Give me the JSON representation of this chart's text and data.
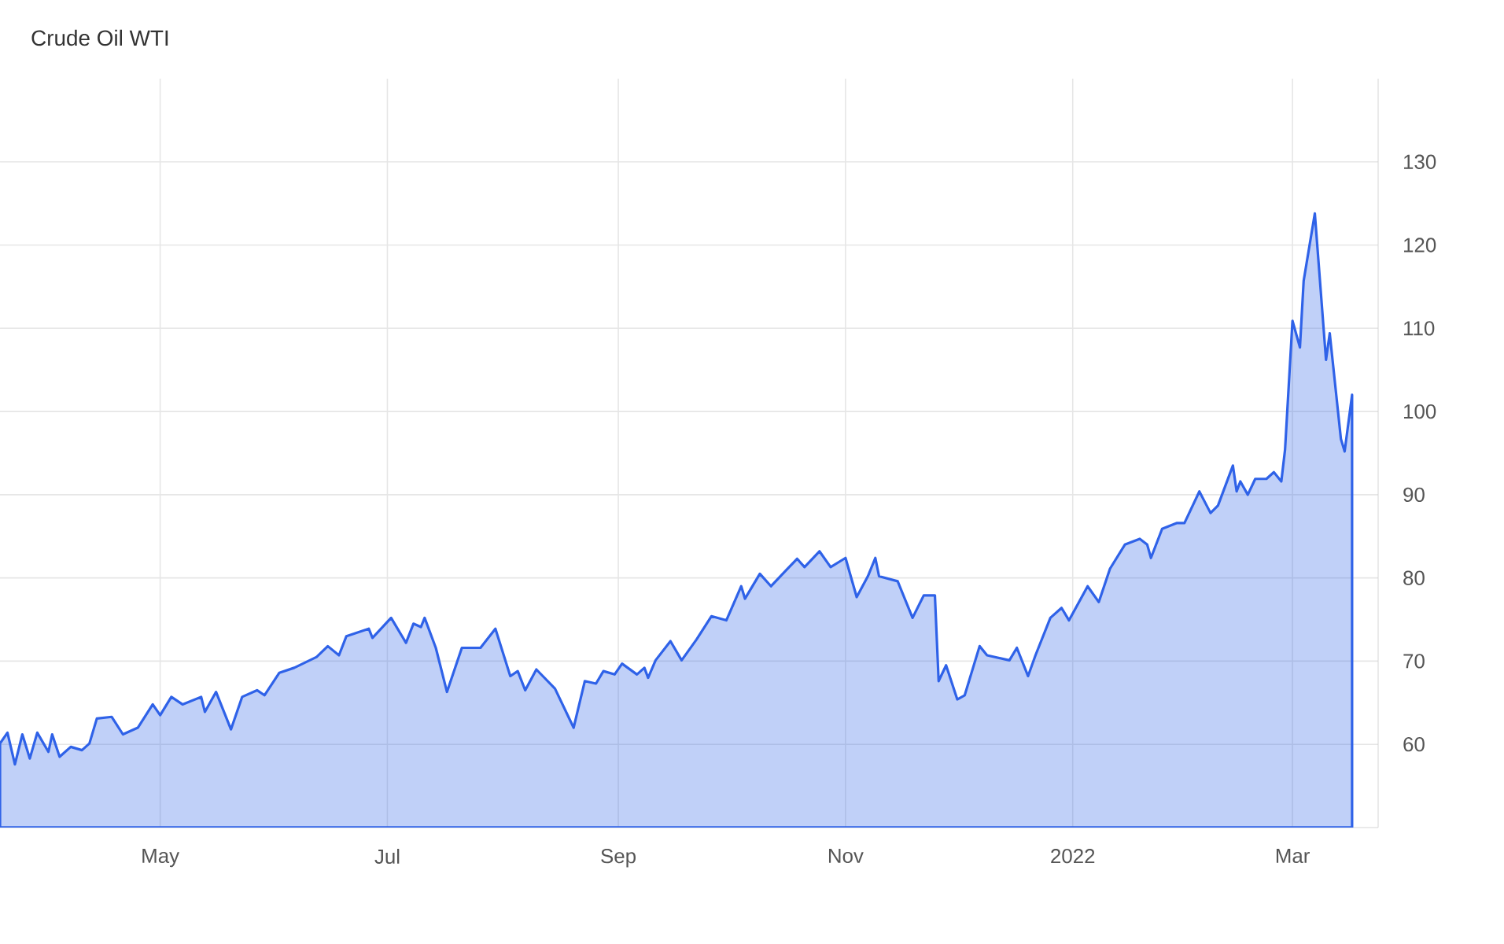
{
  "chart_data": {
    "type": "area",
    "title": "Crude Oil WTI",
    "color": "#2f62e8",
    "grid": true,
    "xlim": [
      "2021-03-19",
      "2022-03-24"
    ],
    "ylim": [
      50,
      140
    ],
    "xticks": [
      {
        "value": "2021-05-01",
        "label": "May"
      },
      {
        "value": "2021-07-01",
        "label": "Jul"
      },
      {
        "value": "2021-09-01",
        "label": "Sep"
      },
      {
        "value": "2021-11-01",
        "label": "Nov"
      },
      {
        "value": "2022-01-01",
        "label": "2022"
      },
      {
        "value": "2022-03-01",
        "label": "Mar"
      }
    ],
    "yticks": [
      60,
      70,
      80,
      90,
      100,
      110,
      120,
      130
    ],
    "x": [
      "2021-03-19",
      "2021-03-21",
      "2021-03-23",
      "2021-03-25",
      "2021-03-27",
      "2021-03-29",
      "2021-04-01",
      "2021-04-02",
      "2021-04-04",
      "2021-04-07",
      "2021-04-10",
      "2021-04-12",
      "2021-04-14",
      "2021-04-18",
      "2021-04-21",
      "2021-04-25",
      "2021-04-29",
      "2021-05-01",
      "2021-05-04",
      "2021-05-07",
      "2021-05-12",
      "2021-05-13",
      "2021-05-16",
      "2021-05-20",
      "2021-05-23",
      "2021-05-27",
      "2021-05-29",
      "2021-06-02",
      "2021-06-06",
      "2021-06-12",
      "2021-06-15",
      "2021-06-18",
      "2021-06-20",
      "2021-06-26",
      "2021-06-27",
      "2021-07-02",
      "2021-07-06",
      "2021-07-08",
      "2021-07-10",
      "2021-07-11",
      "2021-07-14",
      "2021-07-17",
      "2021-07-21",
      "2021-07-26",
      "2021-07-30",
      "2021-08-03",
      "2021-08-05",
      "2021-08-07",
      "2021-08-10",
      "2021-08-15",
      "2021-08-20",
      "2021-08-23",
      "2021-08-26",
      "2021-08-28",
      "2021-08-31",
      "2021-09-02",
      "2021-09-06",
      "2021-09-08",
      "2021-09-09",
      "2021-09-11",
      "2021-09-15",
      "2021-09-18",
      "2021-09-22",
      "2021-09-26",
      "2021-09-30",
      "2021-10-04",
      "2021-10-05",
      "2021-10-09",
      "2021-10-12",
      "2021-10-16",
      "2021-10-19",
      "2021-10-21",
      "2021-10-25",
      "2021-10-28",
      "2021-11-01",
      "2021-11-04",
      "2021-11-07",
      "2021-11-09",
      "2021-11-10",
      "2021-11-15",
      "2021-11-19",
      "2021-11-22",
      "2021-11-25",
      "2021-11-26",
      "2021-11-28",
      "2021-12-01",
      "2021-12-03",
      "2021-12-07",
      "2021-12-09",
      "2021-12-15",
      "2021-12-17",
      "2021-12-20",
      "2021-12-22",
      "2021-12-26",
      "2021-12-29",
      "2021-12-31",
      "2022-01-05",
      "2022-01-08",
      "2022-01-11",
      "2022-01-15",
      "2022-01-19",
      "2022-01-21",
      "2022-01-22",
      "2022-01-25",
      "2022-01-29",
      "2022-01-31",
      "2022-02-04",
      "2022-02-07",
      "2022-02-09",
      "2022-02-13",
      "2022-02-14",
      "2022-02-15",
      "2022-02-17",
      "2022-02-19",
      "2022-02-22",
      "2022-02-24",
      "2022-02-26",
      "2022-02-27",
      "2022-03-01",
      "2022-03-03",
      "2022-03-04",
      "2022-03-07",
      "2022-03-10",
      "2022-03-11",
      "2022-03-14",
      "2022-03-15",
      "2022-03-17"
    ],
    "values": [
      60.1,
      61.4,
      57.6,
      61.2,
      58.3,
      61.4,
      59.1,
      61.2,
      58.5,
      59.7,
      59.3,
      60.1,
      63.1,
      63.3,
      61.2,
      62.0,
      64.8,
      63.5,
      65.7,
      64.8,
      65.7,
      63.9,
      66.3,
      61.8,
      65.7,
      66.5,
      65.9,
      68.6,
      69.2,
      70.5,
      71.8,
      70.7,
      73.0,
      73.9,
      72.8,
      75.2,
      72.2,
      74.5,
      74.1,
      75.2,
      71.6,
      66.3,
      71.6,
      71.6,
      73.9,
      68.2,
      68.8,
      66.5,
      69.0,
      66.7,
      62.0,
      67.6,
      67.3,
      68.8,
      68.4,
      69.7,
      68.4,
      69.2,
      68.0,
      70.1,
      72.4,
      70.1,
      72.6,
      75.4,
      74.9,
      79.0,
      77.5,
      80.5,
      79.0,
      80.9,
      82.3,
      81.3,
      83.2,
      81.3,
      82.4,
      77.7,
      80.2,
      82.4,
      80.2,
      79.6,
      75.2,
      77.9,
      77.9,
      67.6,
      69.5,
      65.4,
      65.9,
      71.8,
      70.7,
      70.1,
      71.6,
      68.2,
      70.7,
      75.2,
      76.4,
      74.9,
      79.0,
      77.1,
      81.1,
      84.0,
      84.7,
      84.0,
      82.4,
      85.9,
      86.6,
      86.6,
      90.4,
      87.8,
      88.7,
      93.5,
      90.4,
      91.6,
      90.0,
      91.9,
      91.9,
      92.7,
      91.6,
      95.4,
      110.9,
      107.7,
      115.7,
      123.8,
      106.2,
      109.4,
      96.7,
      95.2,
      102.0
    ]
  }
}
